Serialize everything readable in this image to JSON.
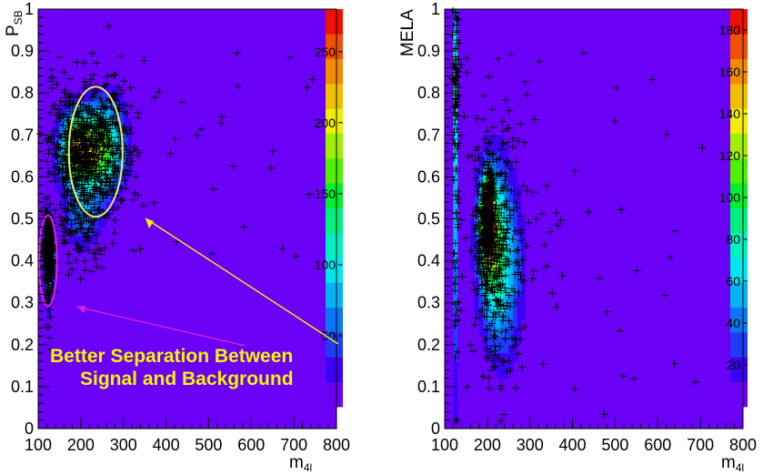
{
  "chart_data": [
    {
      "type": "heatmap",
      "ylabel": "P",
      "ylabel_sub": "SB",
      "xlabel": "m",
      "xlabel_sub": "4l",
      "xlim": [
        100,
        800
      ],
      "ylim": [
        0,
        1
      ],
      "x_ticks": [
        "100",
        "200",
        "300",
        "400",
        "500",
        "600",
        "700",
        "800"
      ],
      "y_ticks": [
        "0",
        "0.1",
        "0.2",
        "0.3",
        "0.4",
        "0.5",
        "0.6",
        "0.7",
        "0.8",
        "0.9",
        "1"
      ],
      "z_ticks": [
        "50",
        "100",
        "150",
        "200",
        "250"
      ],
      "z_range": [
        0,
        280
      ],
      "background_color": "#6a00f5",
      "blobs": [
        {
          "x": 215,
          "y": 0.66,
          "sx": 40,
          "sy": 0.065,
          "z": 175
        },
        {
          "x": 185,
          "y": 0.68,
          "sx": 18,
          "sy": 0.05,
          "z": 80
        },
        {
          "x": 265,
          "y": 0.68,
          "sx": 30,
          "sy": 0.08,
          "z": 70
        },
        {
          "x": 125,
          "y": 0.43,
          "sx": 5,
          "sy": 0.03,
          "z": 270
        },
        {
          "x": 125,
          "y": 0.4,
          "sx": 6,
          "sy": 0.07,
          "z": 110
        },
        {
          "x": 205,
          "y": 0.5,
          "sx": 30,
          "sy": 0.05,
          "z": 55
        }
      ],
      "annotations": [
        {
          "text": "Better Separation Between",
          "color": "#f5f500"
        },
        {
          "text": "Signal and Background",
          "color": "#f5f500"
        }
      ],
      "ellipses": [
        {
          "cx": 235,
          "cy": 0.66,
          "rx": 63,
          "ry": 0.155,
          "color": "#f0f060"
        },
        {
          "cx": 123,
          "cy": 0.4,
          "rx": 21,
          "ry": 0.108,
          "color": "#e020e0"
        }
      ]
    },
    {
      "type": "heatmap",
      "ylabel": "MELA",
      "xlabel": "m",
      "xlabel_sub": "4l",
      "xlim": [
        100,
        800
      ],
      "ylim": [
        0,
        1
      ],
      "x_ticks": [
        "100",
        "200",
        "300",
        "400",
        "500",
        "600",
        "700",
        "800"
      ],
      "y_ticks": [
        "0",
        "0.1",
        "0.2",
        "0.3",
        "0.4",
        "0.5",
        "0.6",
        "0.7",
        "0.8",
        "0.9",
        "1"
      ],
      "z_ticks": [
        "20",
        "40",
        "60",
        "80",
        "100",
        "120",
        "140",
        "160",
        "180"
      ],
      "z_range": [
        0,
        190
      ],
      "background_color": "#6a00f5",
      "blobs": [
        {
          "x": 200,
          "y": 0.5,
          "sx": 10,
          "sy": 0.06,
          "z": 185
        },
        {
          "x": 210,
          "y": 0.45,
          "sx": 22,
          "sy": 0.12,
          "z": 90
        },
        {
          "x": 240,
          "y": 0.38,
          "sx": 30,
          "sy": 0.15,
          "z": 50
        },
        {
          "x": 126,
          "y": 0.6,
          "sx": 3,
          "sy": 0.32,
          "z": 62
        },
        {
          "x": 126,
          "y": 0.85,
          "sx": 3,
          "sy": 0.08,
          "z": 45
        }
      ]
    }
  ]
}
